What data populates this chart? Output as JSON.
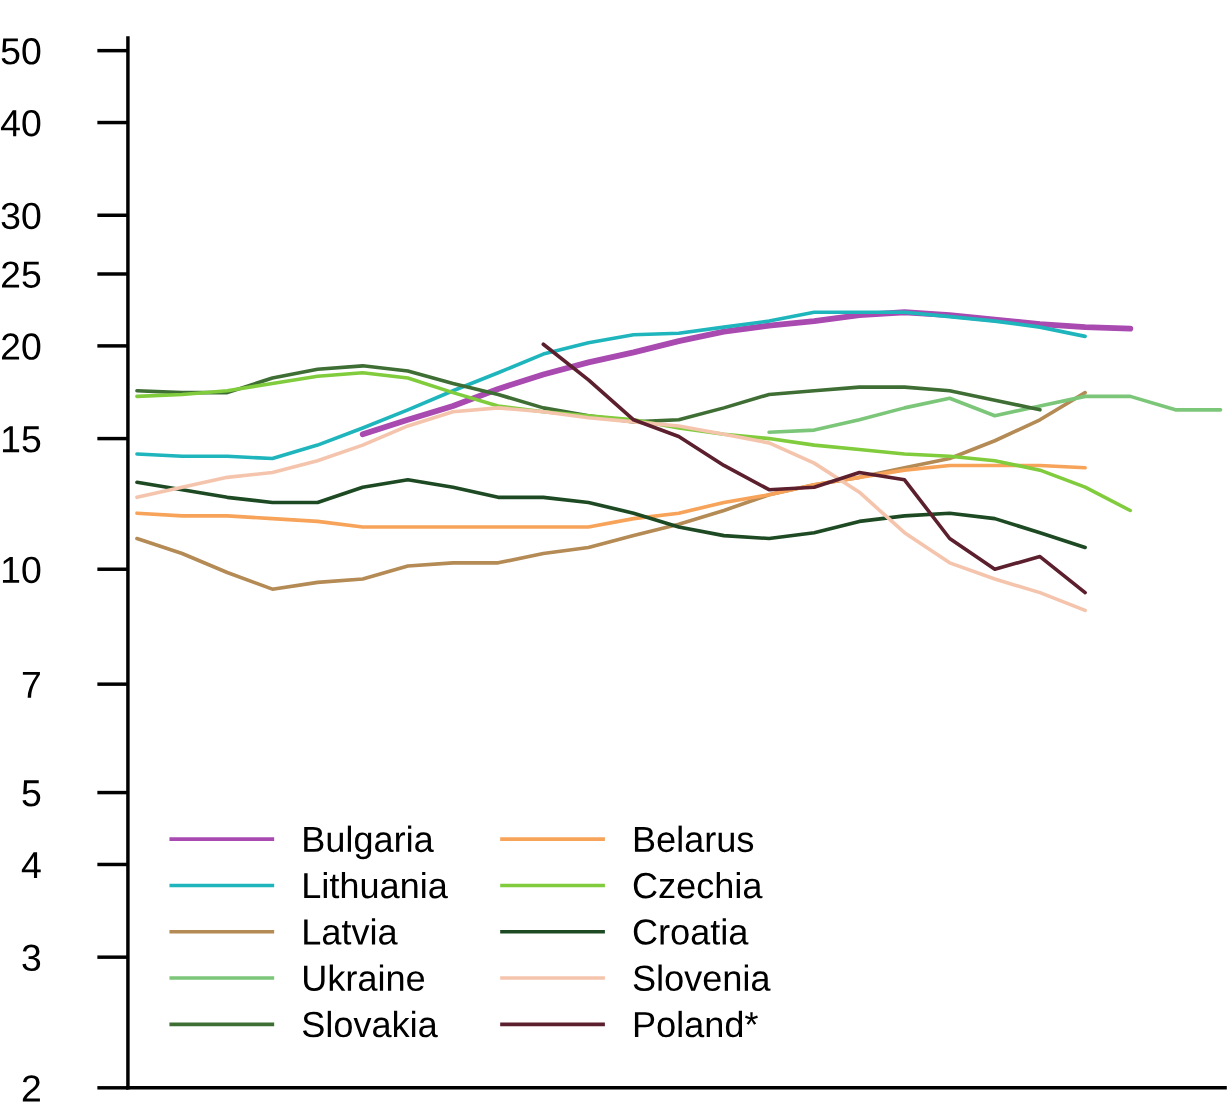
{
  "chart_data": {
    "type": "line",
    "log": "y",
    "grid": false,
    "legend": "bottom left",
    "marker": "none",
    "line_style": "solid",
    "categories": [
      null,
      null,
      null,
      null,
      null,
      null,
      null,
      null,
      null,
      null,
      null,
      null,
      null,
      null,
      null,
      null,
      null,
      null,
      null,
      null,
      null,
      null,
      null,
      null,
      null
    ],
    "ylim": [
      2,
      52
    ],
    "yticks": [
      2,
      3,
      4,
      5,
      7,
      10,
      15,
      20,
      25,
      30,
      40,
      50
    ],
    "series": [
      {
        "name": "Bulgaria",
        "color": "#a84ab0",
        "values": [
          null,
          null,
          null,
          null,
          null,
          15.2,
          15.9,
          16.6,
          17.5,
          18.3,
          19.0,
          19.6,
          20.3,
          20.9,
          21.3,
          21.6,
          22.0,
          22.2,
          22.0,
          21.7,
          21.4,
          21.2,
          21.1,
          null,
          null
        ]
      },
      {
        "name": "Lithuania",
        "color": "#1fb5bd",
        "values": [
          14.3,
          14.2,
          14.2,
          14.1,
          14.7,
          15.5,
          16.4,
          17.4,
          18.4,
          19.5,
          20.2,
          20.7,
          20.8,
          21.2,
          21.6,
          22.2,
          22.2,
          22.2,
          21.9,
          21.6,
          21.2,
          20.6,
          null,
          null,
          null
        ]
      },
      {
        "name": "Latvia",
        "color": "#b48a55",
        "values": [
          11.0,
          10.5,
          9.9,
          9.4,
          9.6,
          9.7,
          10.1,
          10.2,
          10.2,
          10.5,
          10.7,
          11.1,
          11.5,
          12.0,
          12.6,
          13.0,
          13.3,
          13.7,
          14.1,
          14.9,
          15.9,
          17.3,
          null,
          null,
          null
        ]
      },
      {
        "name": "Ukraine",
        "color": "#7cc67a",
        "values": [
          null,
          null,
          null,
          null,
          null,
          null,
          null,
          null,
          null,
          null,
          null,
          null,
          null,
          null,
          15.3,
          15.4,
          15.9,
          16.5,
          17.0,
          16.1,
          16.6,
          17.1,
          17.1,
          16.4,
          16.4
        ]
      },
      {
        "name": "Slovakia",
        "color": "#3f6e35",
        "values": [
          17.4,
          17.3,
          17.3,
          18.1,
          18.6,
          18.8,
          18.5,
          17.8,
          17.2,
          16.5,
          16.1,
          15.8,
          15.9,
          16.5,
          17.2,
          17.4,
          17.6,
          17.6,
          17.4,
          16.9,
          16.4,
          null,
          null,
          null,
          null
        ]
      },
      {
        "name": "Belarus",
        "color": "#f7a35a",
        "values": [
          11.9,
          11.8,
          11.8,
          11.7,
          11.6,
          11.4,
          11.4,
          11.4,
          11.4,
          11.4,
          11.4,
          11.7,
          11.9,
          12.3,
          12.6,
          13.0,
          13.3,
          13.6,
          13.8,
          13.8,
          13.8,
          13.7,
          null,
          null,
          null
        ]
      },
      {
        "name": "Czechia",
        "color": "#80cc3c",
        "values": [
          17.1,
          17.2,
          17.4,
          17.8,
          18.2,
          18.4,
          18.1,
          17.3,
          16.6,
          16.3,
          16.1,
          15.9,
          15.5,
          15.2,
          15.0,
          14.7,
          14.5,
          14.3,
          14.2,
          14.0,
          13.6,
          12.9,
          12.0,
          null,
          null
        ]
      },
      {
        "name": "Croatia",
        "color": "#1d4a22",
        "values": [
          13.1,
          12.8,
          12.5,
          12.3,
          12.3,
          12.9,
          13.2,
          12.9,
          12.5,
          12.5,
          12.3,
          11.9,
          11.4,
          11.1,
          11.0,
          11.2,
          11.6,
          11.8,
          11.9,
          11.7,
          11.2,
          10.7,
          null,
          null,
          null
        ]
      },
      {
        "name": "Slovenia",
        "color": "#f5c4ad",
        "values": [
          12.5,
          12.9,
          13.3,
          13.5,
          14.0,
          14.7,
          15.6,
          16.3,
          16.5,
          16.3,
          16.0,
          15.8,
          15.6,
          15.2,
          14.8,
          13.9,
          12.7,
          11.2,
          10.2,
          9.7,
          9.3,
          8.8,
          null,
          null,
          null
        ]
      },
      {
        "name": "Poland*",
        "color": "#5c1f2e",
        "values": [
          null,
          null,
          null,
          null,
          null,
          null,
          null,
          null,
          null,
          20.1,
          18.0,
          15.9,
          15.1,
          13.8,
          12.8,
          12.9,
          13.5,
          13.2,
          11.0,
          10.0,
          10.4,
          9.3,
          null,
          null,
          null
        ]
      }
    ]
  }
}
